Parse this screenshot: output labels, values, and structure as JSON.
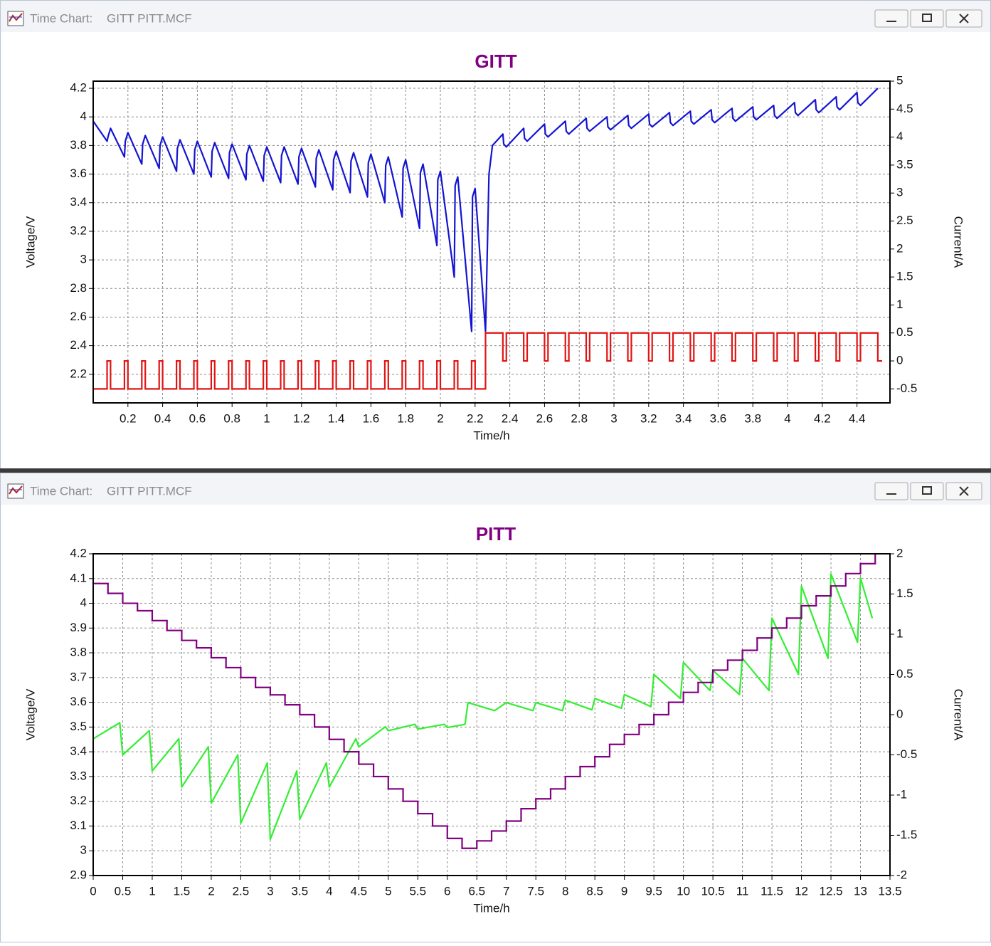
{
  "windows": [
    {
      "caption": "Time Chart:",
      "file": "GITT PITT.MCF"
    },
    {
      "caption": "Time Chart:",
      "file": "GITT PITT.MCF"
    }
  ],
  "chart_data": [
    {
      "type": "line",
      "title": "GITT",
      "x_label": "Time/h",
      "y_label": "Voltage/V",
      "y2_label": "Current/A",
      "grid": true,
      "xlim": [
        0,
        4.59
      ],
      "xticks": [
        0.2,
        0.4,
        0.6,
        0.8,
        1,
        1.2,
        1.4,
        1.6,
        1.8,
        2,
        2.2,
        2.4,
        2.6,
        2.8,
        3,
        3.2,
        3.4,
        3.6,
        3.8,
        4,
        4.2,
        4.4
      ],
      "ylim": [
        2.0,
        4.25
      ],
      "yticks": [
        2.2,
        2.4,
        2.6,
        2.8,
        3,
        3.2,
        3.4,
        3.6,
        3.8,
        4,
        4.2
      ],
      "y2lim": [
        -0.75,
        5
      ],
      "y2ticks": [
        -0.5,
        0,
        0.5,
        1,
        1.5,
        2,
        2.5,
        3,
        3.5,
        4,
        4.5,
        5
      ],
      "series": [
        {
          "color": "#1414d2",
          "x": [
            0,
            0.08,
            0.085,
            0.1,
            0.18,
            0.185,
            0.2,
            0.28,
            0.285,
            0.3,
            0.38,
            0.385,
            0.4,
            0.48,
            0.485,
            0.5,
            0.58,
            0.585,
            0.6,
            0.68,
            0.685,
            0.7,
            0.78,
            0.785,
            0.8,
            0.88,
            0.885,
            0.9,
            0.98,
            0.985,
            1,
            1.08,
            1.085,
            1.1,
            1.18,
            1.185,
            1.2,
            1.28,
            1.285,
            1.3,
            1.38,
            1.385,
            1.4,
            1.48,
            1.485,
            1.5,
            1.58,
            1.585,
            1.6,
            1.68,
            1.685,
            1.7,
            1.78,
            1.785,
            1.8,
            1.88,
            1.885,
            1.9,
            1.98,
            1.985,
            2,
            2.08,
            2.085,
            2.1,
            2.18,
            2.185,
            2.2,
            2.26,
            2.28,
            2.3,
            2.36,
            2.365,
            2.38,
            2.48,
            2.485,
            2.5,
            2.6,
            2.605,
            2.62,
            2.72,
            2.725,
            2.74,
            2.84,
            2.845,
            2.86,
            2.96,
            2.965,
            2.98,
            3.08,
            3.085,
            3.1,
            3.2,
            3.205,
            3.22,
            3.32,
            3.325,
            3.34,
            3.44,
            3.445,
            3.46,
            3.56,
            3.565,
            3.58,
            3.68,
            3.685,
            3.7,
            3.8,
            3.805,
            3.82,
            3.92,
            3.925,
            3.94,
            4.04,
            4.045,
            4.06,
            4.16,
            4.165,
            4.18,
            4.28,
            4.285,
            4.3,
            4.4,
            4.405,
            4.42,
            4.52
          ],
          "values": [
            3.97,
            3.83,
            3.86,
            3.92,
            3.72,
            3.83,
            3.89,
            3.67,
            3.81,
            3.87,
            3.64,
            3.8,
            3.86,
            3.62,
            3.78,
            3.84,
            3.6,
            3.77,
            3.83,
            3.58,
            3.76,
            3.82,
            3.57,
            3.75,
            3.81,
            3.56,
            3.74,
            3.8,
            3.55,
            3.73,
            3.79,
            3.54,
            3.73,
            3.79,
            3.53,
            3.72,
            3.78,
            3.51,
            3.71,
            3.77,
            3.49,
            3.7,
            3.76,
            3.47,
            3.69,
            3.75,
            3.44,
            3.68,
            3.74,
            3.4,
            3.66,
            3.72,
            3.3,
            3.64,
            3.7,
            3.22,
            3.61,
            3.67,
            3.1,
            3.56,
            3.62,
            2.88,
            3.52,
            3.58,
            2.5,
            3.44,
            3.5,
            2.5,
            3.6,
            3.8,
            3.88,
            3.81,
            3.79,
            3.92,
            3.85,
            3.83,
            3.95,
            3.88,
            3.86,
            3.97,
            3.9,
            3.88,
            3.99,
            3.92,
            3.9,
            4,
            3.93,
            3.91,
            4.01,
            3.94,
            3.92,
            4.02,
            3.95,
            3.93,
            4.03,
            3.96,
            3.94,
            4.04,
            3.97,
            3.95,
            4.05,
            3.98,
            3.96,
            4.06,
            3.99,
            3.97,
            4.07,
            4,
            3.98,
            4.08,
            4.01,
            3.99,
            4.1,
            4.03,
            4.01,
            4.12,
            4.05,
            4.03,
            4.14,
            4.07,
            4.05,
            4.17,
            4.1,
            4.08,
            4.2
          ]
        },
        {
          "color": "#e01414",
          "axis": "y2",
          "step": true,
          "x": [
            0,
            0.08,
            0.1,
            0.18,
            0.2,
            0.28,
            0.3,
            0.38,
            0.4,
            0.48,
            0.5,
            0.58,
            0.6,
            0.68,
            0.7,
            0.78,
            0.8,
            0.88,
            0.9,
            0.98,
            1,
            1.08,
            1.1,
            1.18,
            1.2,
            1.28,
            1.3,
            1.38,
            1.4,
            1.48,
            1.5,
            1.58,
            1.6,
            1.68,
            1.7,
            1.78,
            1.8,
            1.88,
            1.9,
            1.98,
            2,
            2.08,
            2.1,
            2.18,
            2.2,
            2.26,
            2.36,
            2.38,
            2.48,
            2.5,
            2.6,
            2.62,
            2.72,
            2.74,
            2.84,
            2.86,
            2.96,
            2.98,
            3.08,
            3.1,
            3.2,
            3.22,
            3.32,
            3.34,
            3.44,
            3.46,
            3.56,
            3.58,
            3.68,
            3.7,
            3.8,
            3.82,
            3.92,
            3.94,
            4.04,
            4.06,
            4.16,
            4.18,
            4.28,
            4.3,
            4.4,
            4.42,
            4.52,
            4.54
          ],
          "values": [
            -0.5,
            0,
            -0.5,
            0,
            -0.5,
            0,
            -0.5,
            0,
            -0.5,
            0,
            -0.5,
            0,
            -0.5,
            0,
            -0.5,
            0,
            -0.5,
            0,
            -0.5,
            0,
            -0.5,
            0,
            -0.5,
            0,
            -0.5,
            0,
            -0.5,
            0,
            -0.5,
            0,
            -0.5,
            0,
            -0.5,
            0,
            -0.5,
            0,
            -0.5,
            0,
            -0.5,
            0,
            -0.5,
            0,
            -0.5,
            0,
            -0.5,
            0.5,
            0,
            0.5,
            0,
            0.5,
            0,
            0.5,
            0,
            0.5,
            0,
            0.5,
            0,
            0.5,
            0,
            0.5,
            0,
            0.5,
            0,
            0.5,
            0,
            0.5,
            0,
            0.5,
            0,
            0.5,
            0,
            0.5,
            0,
            0.5,
            0,
            0.5,
            0,
            0.5,
            0,
            0.5,
            0,
            0.5,
            0,
            0
          ]
        }
      ]
    },
    {
      "type": "line",
      "title": "PITT",
      "x_label": "Time/h",
      "y_label": "Voltage/V",
      "y2_label": "Current/A",
      "grid": true,
      "xlim": [
        0,
        13.5
      ],
      "xticks": [
        0,
        0.5,
        1,
        1.5,
        2,
        2.5,
        3,
        3.5,
        4,
        4.5,
        5,
        5.5,
        6,
        6.5,
        7,
        7.5,
        8,
        8.5,
        9,
        9.5,
        10,
        10.5,
        11,
        11.5,
        12,
        12.5,
        13,
        13.5
      ],
      "ylim": [
        2.9,
        4.2
      ],
      "yticks": [
        2.9,
        3,
        3.1,
        3.2,
        3.3,
        3.4,
        3.5,
        3.6,
        3.7,
        3.8,
        3.9,
        4,
        4.1,
        4.2
      ],
      "y2lim": [
        -2,
        2
      ],
      "y2ticks": [
        -2,
        -1.5,
        -1,
        -0.5,
        0,
        0.5,
        1,
        1.5,
        2
      ],
      "series": [
        {
          "color": "#33ee33",
          "axis": "y2",
          "x": [
            0,
            0.45,
            0.5,
            0.95,
            1,
            1.45,
            1.5,
            1.95,
            2,
            2.45,
            2.5,
            2.95,
            3,
            3.45,
            3.5,
            3.95,
            4,
            4.45,
            4.5,
            4.95,
            5,
            5.45,
            5.5,
            5.95,
            6,
            6.3,
            6.35,
            6.8,
            7,
            7.45,
            7.5,
            7.95,
            8,
            8.45,
            8.5,
            8.95,
            9,
            9.45,
            9.5,
            9.95,
            10,
            10.45,
            10.5,
            10.95,
            11,
            11.45,
            11.5,
            11.95,
            12,
            12.45,
            12.5,
            12.95,
            13,
            13.2
          ],
          "values": [
            -0.3,
            -0.1,
            -0.5,
            -0.2,
            -0.7,
            -0.3,
            -0.9,
            -0.4,
            -1.1,
            -0.5,
            -1.35,
            -0.6,
            -1.55,
            -0.7,
            -1.3,
            -0.6,
            -0.9,
            -0.3,
            -0.4,
            -0.15,
            -0.2,
            -0.12,
            -0.18,
            -0.12,
            -0.16,
            -0.12,
            0.15,
            0.05,
            0.15,
            0.05,
            0.15,
            0.05,
            0.18,
            0.06,
            0.2,
            0.08,
            0.25,
            0.1,
            0.5,
            0.2,
            0.65,
            0.3,
            0.55,
            0.25,
            0.7,
            0.3,
            1.2,
            0.5,
            1.6,
            0.7,
            1.75,
            0.9,
            1.7,
            1.2
          ]
        },
        {
          "color": "#800080",
          "step": true,
          "x": [
            0,
            0.25,
            0.5,
            0.75,
            1,
            1.25,
            1.5,
            1.75,
            2,
            2.25,
            2.5,
            2.75,
            3,
            3.25,
            3.5,
            3.75,
            4,
            4.25,
            4.5,
            4.75,
            5,
            5.25,
            5.5,
            5.75,
            6,
            6.25,
            6.5,
            6.75,
            7,
            7.25,
            7.5,
            7.75,
            8,
            8.25,
            8.5,
            8.75,
            9,
            9.25,
            9.5,
            9.75,
            10,
            10.25,
            10.5,
            10.75,
            11,
            11.25,
            11.5,
            11.75,
            12,
            12.25,
            12.5,
            12.75,
            13,
            13.25
          ],
          "values": [
            4.08,
            4.04,
            4,
            3.97,
            3.93,
            3.89,
            3.85,
            3.82,
            3.78,
            3.74,
            3.7,
            3.66,
            3.63,
            3.59,
            3.55,
            3.5,
            3.45,
            3.4,
            3.35,
            3.3,
            3.25,
            3.2,
            3.15,
            3.1,
            3.05,
            3.01,
            3.04,
            3.08,
            3.12,
            3.17,
            3.21,
            3.25,
            3.3,
            3.34,
            3.38,
            3.43,
            3.47,
            3.51,
            3.55,
            3.6,
            3.64,
            3.68,
            3.73,
            3.77,
            3.81,
            3.86,
            3.9,
            3.94,
            3.99,
            4.03,
            4.07,
            4.12,
            4.16,
            4.2
          ]
        }
      ]
    }
  ]
}
